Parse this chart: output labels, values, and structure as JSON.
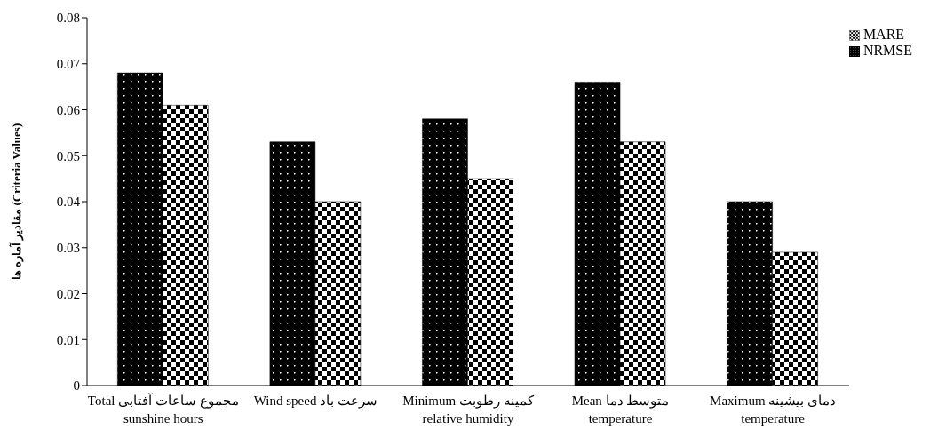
{
  "chart_data": {
    "type": "bar",
    "ylabel": "مقادیر آماره ها (Criteria Values)",
    "categories": [
      "Total مجموع ساعات آفتابی\nsunshine hours",
      "Wind speed سرعت باد",
      "Minimum کمینه رطوبت\nrelative humidity",
      "Mean متوسط دما\ntemperature",
      "Maximum دمای بیشینه\ntemperature"
    ],
    "series": [
      {
        "name": "NRMSE",
        "color": "#000000",
        "values": [
          0.068,
          0.053,
          0.058,
          0.066,
          0.04
        ]
      },
      {
        "name": "MARE",
        "color": "#000000",
        "values": [
          0.061,
          0.04,
          0.045,
          0.053,
          0.029
        ]
      }
    ],
    "ylim": [
      0,
      0.08
    ],
    "yticks": [
      0,
      0.01,
      0.02,
      0.03,
      0.04,
      0.05,
      0.06,
      0.07,
      0.08
    ],
    "grid": false,
    "legend": "top right"
  }
}
